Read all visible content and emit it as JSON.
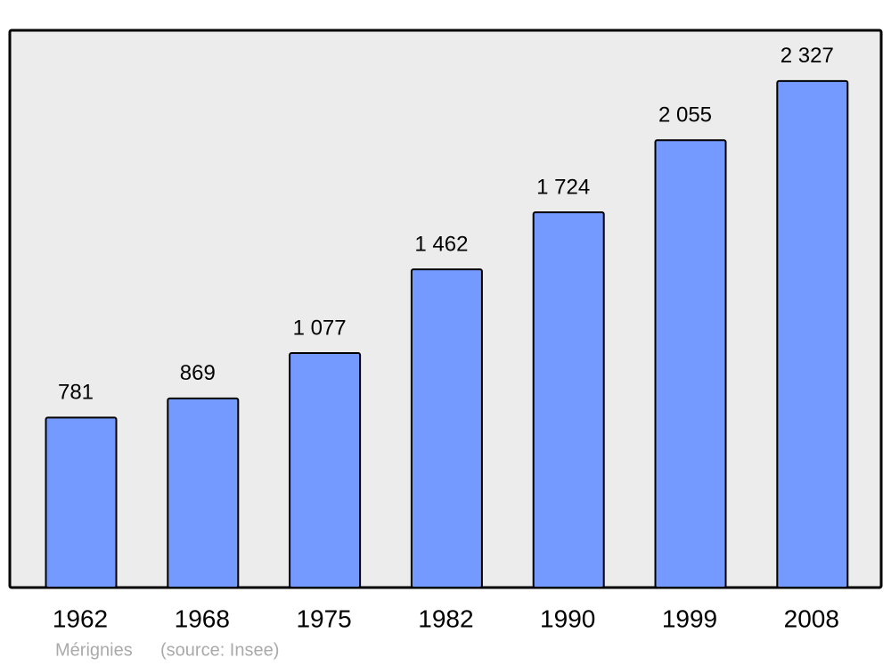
{
  "chart_data": {
    "type": "bar",
    "categories": [
      "1962",
      "1968",
      "1975",
      "1982",
      "1990",
      "1999",
      "2008"
    ],
    "values": [
      781,
      869,
      1077,
      1462,
      1724,
      2055,
      2327
    ],
    "value_labels": [
      "781",
      "869",
      "1 077",
      "1 462",
      "1 724",
      "2 055",
      "2 327"
    ],
    "color": "#7499ff",
    "ylim": [
      0,
      2560
    ],
    "caption": "Mérignies",
    "source": "(source: Insee)"
  }
}
